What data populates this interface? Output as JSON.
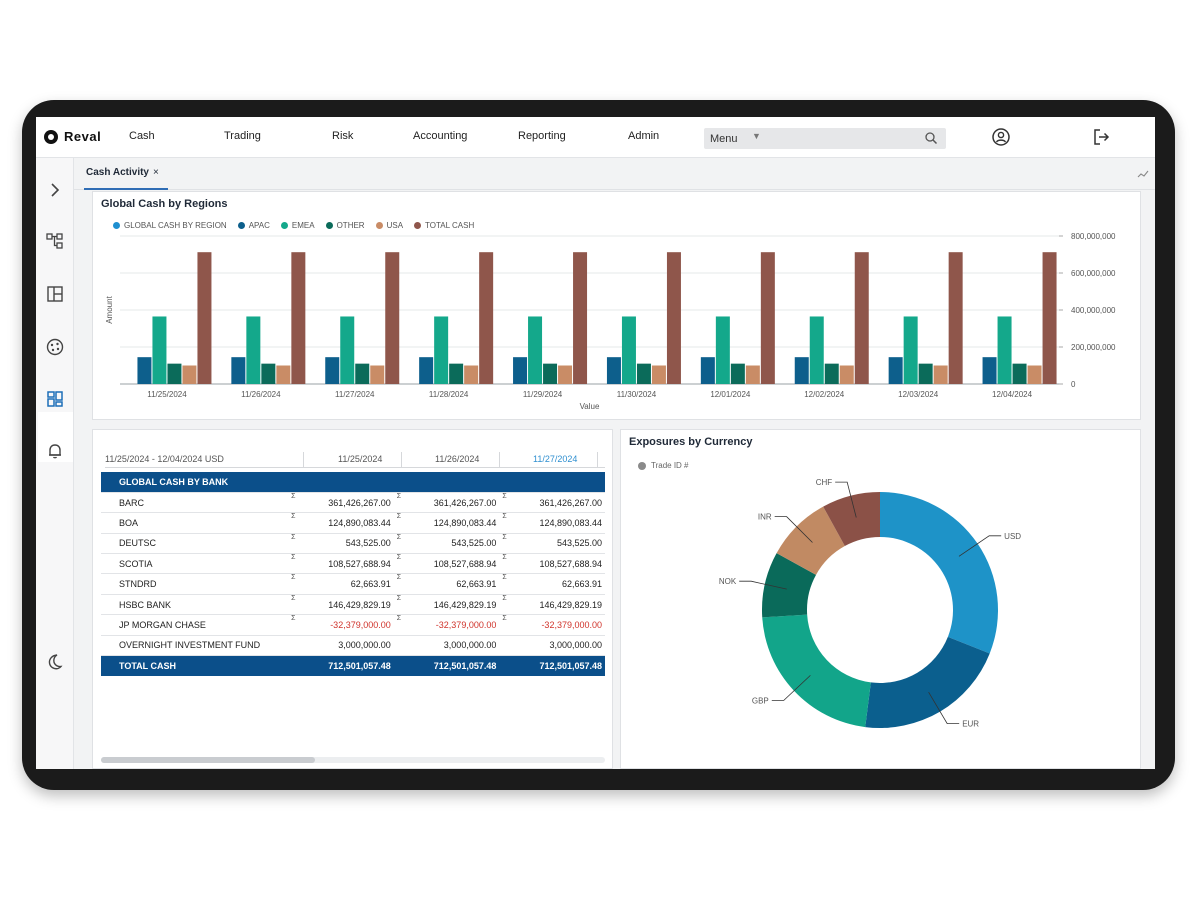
{
  "app": {
    "logo_text": "Reval"
  },
  "nav": {
    "items": [
      "Cash",
      "Trading",
      "Risk",
      "Accounting",
      "Reporting",
      "Admin"
    ]
  },
  "menu": {
    "label": "Menu"
  },
  "tabs": [
    {
      "label": "Cash Activity",
      "close": "×"
    }
  ],
  "chart_panel": {
    "title": "Global Cash by Regions"
  },
  "chart_data": {
    "type": "bar",
    "title": "Global Cash by Regions",
    "xlabel": "Value",
    "ylabel": "Amount",
    "ylim": [
      0,
      800000000
    ],
    "y_ticks": [
      "800,000,000",
      "600,000,000",
      "400,000,000",
      "200,000,000",
      "0"
    ],
    "y_axis_side": "right",
    "grid": true,
    "legend_position": "top-left",
    "categories": [
      "11/25/2024",
      "11/26/2024",
      "11/27/2024",
      "11/28/2024",
      "11/29/2024",
      "11/30/2024",
      "12/01/2024",
      "12/02/2024",
      "12/03/2024",
      "12/04/2024"
    ],
    "series": [
      {
        "name": "GLOBAL CASH BY REGION",
        "color": "#1e8fd0",
        "values": [
          0,
          0,
          0,
          0,
          0,
          0,
          0,
          0,
          0,
          0
        ]
      },
      {
        "name": "APAC",
        "color": "#0d5f8c",
        "values": [
          145000000,
          145000000,
          145000000,
          145000000,
          145000000,
          145000000,
          145000000,
          145000000,
          145000000,
          145000000
        ]
      },
      {
        "name": "EMEA",
        "color": "#14a88b",
        "values": [
          365000000,
          365000000,
          365000000,
          365000000,
          365000000,
          365000000,
          365000000,
          365000000,
          365000000,
          365000000
        ]
      },
      {
        "name": "OTHER",
        "color": "#0b6b5a",
        "values": [
          110000000,
          110000000,
          110000000,
          110000000,
          110000000,
          110000000,
          110000000,
          110000000,
          110000000,
          110000000
        ]
      },
      {
        "name": "USA",
        "color": "#c98c66",
        "values": [
          100000000,
          100000000,
          100000000,
          100000000,
          100000000,
          100000000,
          100000000,
          100000000,
          100000000,
          100000000
        ]
      },
      {
        "name": "TOTAL CASH",
        "color": "#8f564b",
        "values": [
          712501057.48,
          712501057.48,
          712501057.48,
          712501057.48,
          712501057.48,
          712501057.48,
          712501057.48,
          712501057.48,
          712501057.48,
          712501057.48
        ]
      }
    ]
  },
  "table_panel": {
    "range_label": "11/25/2024 - 12/04/2024 USD",
    "columns": [
      "11/25/2024",
      "11/26/2024",
      "11/27/2024"
    ],
    "section_header": "GLOBAL CASH BY BANK",
    "sigma": "Σ",
    "rows": [
      {
        "name": "BARC",
        "values": [
          "361,426,267.00",
          "361,426,267.00",
          "361,426,267.00"
        ],
        "negative": false,
        "sigma": true
      },
      {
        "name": "BOA",
        "values": [
          "124,890,083.44",
          "124,890,083.44",
          "124,890,083.44"
        ],
        "negative": false,
        "sigma": true
      },
      {
        "name": "DEUTSC",
        "values": [
          "543,525.00",
          "543,525.00",
          "543,525.00"
        ],
        "negative": false,
        "sigma": true
      },
      {
        "name": "SCOTIA",
        "values": [
          "108,527,688.94",
          "108,527,688.94",
          "108,527,688.94"
        ],
        "negative": false,
        "sigma": true
      },
      {
        "name": "STNDRD",
        "values": [
          "62,663.91",
          "62,663.91",
          "62,663.91"
        ],
        "negative": false,
        "sigma": true
      },
      {
        "name": "HSBC BANK",
        "values": [
          "146,429,829.19",
          "146,429,829.19",
          "146,429,829.19"
        ],
        "negative": false,
        "sigma": true
      },
      {
        "name": "JP MORGAN CHASE",
        "values": [
          "-32,379,000.00",
          "-32,379,000.00",
          "-32,379,000.00"
        ],
        "negative": true,
        "sigma": true
      },
      {
        "name": "OVERNIGHT INVESTMENT FUND",
        "values": [
          "3,000,000.00",
          "3,000,000.00",
          "3,000,000.00"
        ],
        "negative": false,
        "sigma": false
      }
    ],
    "total": {
      "name": "TOTAL CASH",
      "values": [
        "712,501,057.48",
        "712,501,057.48",
        "712,501,057.48"
      ]
    }
  },
  "exposure_panel": {
    "title": "Exposures by Currency",
    "legend": "Trade ID #",
    "legend_color": "#8a8a8a"
  },
  "donut_data": {
    "type": "pie",
    "segments": [
      {
        "label": "USD",
        "value": 31,
        "color": "#1e93c8"
      },
      {
        "label": "EUR",
        "value": 21,
        "color": "#0b5f8e"
      },
      {
        "label": "GBP",
        "value": 22,
        "color": "#12a58a"
      },
      {
        "label": "NOK",
        "value": 9,
        "color": "#0a6a5a"
      },
      {
        "label": "INR",
        "value": 9,
        "color": "#c18a63"
      },
      {
        "label": "CHF",
        "value": 8,
        "color": "#8b5147"
      }
    ]
  }
}
